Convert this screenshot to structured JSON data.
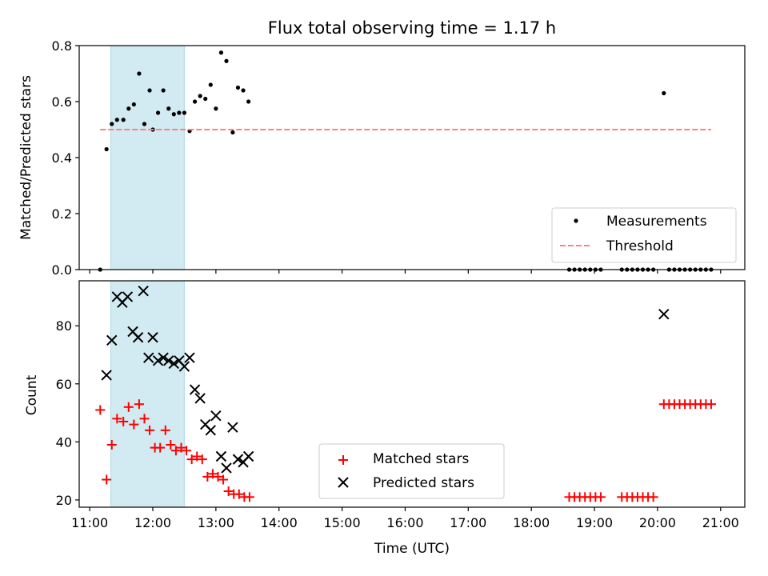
{
  "chart_data": {
    "title": "Flux total observing time = 1.17 h",
    "xlabel": "Time (UTC)",
    "x_ticks": [
      "11:00",
      "12:00",
      "13:00",
      "14:00",
      "15:00",
      "16:00",
      "17:00",
      "18:00",
      "19:00",
      "20:00",
      "21:00"
    ],
    "x_range": [
      "10:50",
      "21:23"
    ],
    "shaded_span": [
      "11:20",
      "12:30"
    ],
    "colors": {
      "span": "#add8e6",
      "measurements": "#000000",
      "threshold": "#ff7f7f",
      "matched": "#ff0000",
      "predicted": "#000000"
    },
    "panels": [
      {
        "type": "scatter",
        "ylabel": "Matched/Predicted stars",
        "ylim": [
          0,
          0.8
        ],
        "y_ticks": [
          "0.0",
          "0.2",
          "0.4",
          "0.6",
          "0.8"
        ],
        "legend_position": "lower-right",
        "series": [
          {
            "name": "Measurements",
            "style": "dot",
            "points": [
              [
                "11:10",
                0.0
              ],
              [
                "11:16",
                0.43
              ],
              [
                "11:21",
                0.52
              ],
              [
                "11:26",
                0.535
              ],
              [
                "11:32",
                0.535
              ],
              [
                "11:37",
                0.575
              ],
              [
                "11:42",
                0.59
              ],
              [
                "11:47",
                0.7
              ],
              [
                "11:52",
                0.52
              ],
              [
                "11:57",
                0.64
              ],
              [
                "12:00",
                0.5
              ],
              [
                "12:05",
                0.56
              ],
              [
                "12:10",
                0.64
              ],
              [
                "12:15",
                0.575
              ],
              [
                "12:20",
                0.555
              ],
              [
                "12:25",
                0.56
              ],
              [
                "12:30",
                0.56
              ],
              [
                "12:35",
                0.495
              ],
              [
                "12:40",
                0.6
              ],
              [
                "12:45",
                0.62
              ],
              [
                "12:50",
                0.61
              ],
              [
                "12:55",
                0.66
              ],
              [
                "13:00",
                0.575
              ],
              [
                "13:05",
                0.775
              ],
              [
                "13:10",
                0.745
              ],
              [
                "13:16",
                0.49
              ],
              [
                "13:21",
                0.65
              ],
              [
                "13:26",
                0.64
              ],
              [
                "13:31",
                0.6
              ],
              [
                "18:36",
                0.0
              ],
              [
                "18:41",
                0.0
              ],
              [
                "18:46",
                0.0
              ],
              [
                "18:51",
                0.0
              ],
              [
                "18:56",
                0.0
              ],
              [
                "19:01",
                0.0
              ],
              [
                "19:06",
                0.0
              ],
              [
                "19:26",
                0.0
              ],
              [
                "19:31",
                0.0
              ],
              [
                "19:36",
                0.0
              ],
              [
                "19:41",
                0.0
              ],
              [
                "19:46",
                0.0
              ],
              [
                "19:51",
                0.0
              ],
              [
                "19:56",
                0.0
              ],
              [
                "20:06",
                0.63
              ],
              [
                "20:11",
                0.0
              ],
              [
                "20:16",
                0.0
              ],
              [
                "20:21",
                0.0
              ],
              [
                "20:26",
                0.0
              ],
              [
                "20:31",
                0.0
              ],
              [
                "20:36",
                0.0
              ],
              [
                "20:41",
                0.0
              ],
              [
                "20:46",
                0.0
              ],
              [
                "20:51",
                0.0
              ]
            ]
          },
          {
            "name": "Threshold",
            "style": "dashed-line",
            "points": [
              [
                "11:10",
                0.5
              ],
              [
                "20:51",
                0.5
              ]
            ]
          }
        ]
      },
      {
        "type": "scatter",
        "ylabel": "Count",
        "ylim": [
          17.5,
          95.5
        ],
        "y_ticks": [
          "20",
          "40",
          "60",
          "80"
        ],
        "legend_position": "lower-center",
        "series": [
          {
            "name": "Matched stars",
            "style": "plus",
            "points": [
              [
                "11:10",
                51
              ],
              [
                "11:16",
                27
              ],
              [
                "11:21",
                39
              ],
              [
                "11:26",
                48
              ],
              [
                "11:32",
                47
              ],
              [
                "11:37",
                52
              ],
              [
                "11:42",
                46
              ],
              [
                "11:47",
                53
              ],
              [
                "11:52",
                48
              ],
              [
                "11:57",
                44
              ],
              [
                "12:02",
                38
              ],
              [
                "12:07",
                38
              ],
              [
                "12:12",
                44
              ],
              [
                "12:17",
                39
              ],
              [
                "12:22",
                37
              ],
              [
                "12:27",
                38
              ],
              [
                "12:32",
                37
              ],
              [
                "12:37",
                34
              ],
              [
                "12:42",
                35
              ],
              [
                "12:47",
                34
              ],
              [
                "12:52",
                28
              ],
              [
                "12:57",
                29
              ],
              [
                "13:02",
                28
              ],
              [
                "13:07",
                27
              ],
              [
                "13:12",
                23
              ],
              [
                "13:17",
                22
              ],
              [
                "13:22",
                22
              ],
              [
                "13:27",
                21
              ],
              [
                "13:32",
                21
              ],
              [
                "18:36",
                21
              ],
              [
                "18:41",
                21
              ],
              [
                "18:46",
                21
              ],
              [
                "18:51",
                21
              ],
              [
                "18:56",
                21
              ],
              [
                "19:01",
                21
              ],
              [
                "19:06",
                21
              ],
              [
                "19:26",
                21
              ],
              [
                "19:31",
                21
              ],
              [
                "19:36",
                21
              ],
              [
                "19:41",
                21
              ],
              [
                "19:46",
                21
              ],
              [
                "19:51",
                21
              ],
              [
                "19:56",
                21
              ],
              [
                "20:06",
                53
              ],
              [
                "20:11",
                53
              ],
              [
                "20:16",
                53
              ],
              [
                "20:21",
                53
              ],
              [
                "20:26",
                53
              ],
              [
                "20:31",
                53
              ],
              [
                "20:36",
                53
              ],
              [
                "20:41",
                53
              ],
              [
                "20:46",
                53
              ],
              [
                "20:51",
                53
              ]
            ]
          },
          {
            "name": "Predicted stars",
            "style": "x",
            "points": [
              [
                "11:16",
                63
              ],
              [
                "11:21",
                75
              ],
              [
                "11:26",
                90
              ],
              [
                "11:31",
                88
              ],
              [
                "11:36",
                90
              ],
              [
                "11:41",
                78
              ],
              [
                "11:46",
                76
              ],
              [
                "11:51",
                92
              ],
              [
                "11:56",
                69
              ],
              [
                "12:00",
                76
              ],
              [
                "12:05",
                68
              ],
              [
                "12:10",
                69
              ],
              [
                "12:15",
                68
              ],
              [
                "12:20",
                67
              ],
              [
                "12:25",
                68
              ],
              [
                "12:30",
                66
              ],
              [
                "12:35",
                69
              ],
              [
                "12:40",
                58
              ],
              [
                "12:45",
                55
              ],
              [
                "12:50",
                46
              ],
              [
                "12:55",
                44
              ],
              [
                "13:00",
                49
              ],
              [
                "13:05",
                35
              ],
              [
                "13:10",
                31
              ],
              [
                "13:16",
                45
              ],
              [
                "13:21",
                34
              ],
              [
                "13:26",
                33
              ],
              [
                "13:31",
                35
              ],
              [
                "20:06",
                84
              ]
            ]
          }
        ]
      }
    ]
  }
}
